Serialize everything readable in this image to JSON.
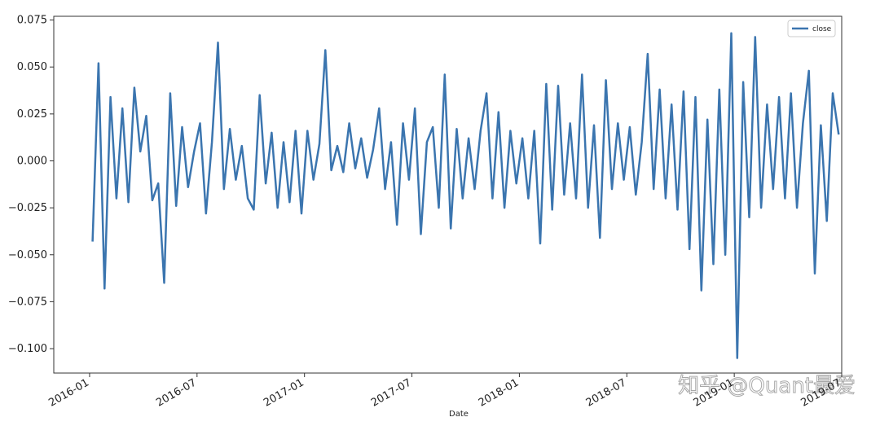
{
  "chart_data": {
    "type": "line",
    "xlabel": "Date",
    "watermark": "知乎 @Quant最爱",
    "legend": "upper right",
    "x": [
      "2016-01",
      "2016-01",
      "2016-01",
      "2016-02",
      "2016-02",
      "2016-02",
      "2016-03",
      "2016-03",
      "2016-03",
      "2016-04",
      "2016-04",
      "2016-04",
      "2016-05",
      "2016-05",
      "2016-05",
      "2016-06",
      "2016-06",
      "2016-06",
      "2016-07",
      "2016-07",
      "2016-07",
      "2016-08",
      "2016-08",
      "2016-08",
      "2016-09",
      "2016-09",
      "2016-09",
      "2016-10",
      "2016-10",
      "2016-10",
      "2016-11",
      "2016-11",
      "2016-11",
      "2016-12",
      "2016-12",
      "2016-12",
      "2017-01",
      "2017-01",
      "2017-01",
      "2017-02",
      "2017-02",
      "2017-02",
      "2017-03",
      "2017-03",
      "2017-03",
      "2017-04",
      "2017-04",
      "2017-04",
      "2017-05",
      "2017-05",
      "2017-05",
      "2017-06",
      "2017-06",
      "2017-06",
      "2017-07",
      "2017-07",
      "2017-07",
      "2017-08",
      "2017-08",
      "2017-08",
      "2017-09",
      "2017-09",
      "2017-09",
      "2017-10",
      "2017-10",
      "2017-10",
      "2017-11",
      "2017-11",
      "2017-11",
      "2017-12",
      "2017-12",
      "2017-12",
      "2018-01",
      "2018-01",
      "2018-01",
      "2018-02",
      "2018-02",
      "2018-02",
      "2018-03",
      "2018-03",
      "2018-03",
      "2018-04",
      "2018-04",
      "2018-04",
      "2018-05",
      "2018-05",
      "2018-05",
      "2018-06",
      "2018-06",
      "2018-06",
      "2018-07",
      "2018-07",
      "2018-07",
      "2018-08",
      "2018-08",
      "2018-08",
      "2018-09",
      "2018-09",
      "2018-09",
      "2018-10",
      "2018-10",
      "2018-10",
      "2018-11",
      "2018-11",
      "2018-11",
      "2018-12",
      "2018-12",
      "2018-12",
      "2019-01",
      "2019-01",
      "2019-01",
      "2019-02",
      "2019-02",
      "2019-02",
      "2019-03",
      "2019-03",
      "2019-03",
      "2019-04",
      "2019-04",
      "2019-04",
      "2019-05",
      "2019-05",
      "2019-05",
      "2019-06",
      "2019-06",
      "2019-06"
    ],
    "series": [
      {
        "name": "close",
        "color": "#3b75af",
        "values": [
          -0.043,
          0.052,
          -0.068,
          0.034,
          -0.02,
          0.028,
          -0.022,
          0.039,
          0.005,
          0.024,
          -0.021,
          -0.012,
          -0.065,
          0.036,
          -0.024,
          0.018,
          -0.014,
          0.005,
          0.02,
          -0.028,
          0.01,
          0.063,
          -0.015,
          0.017,
          -0.01,
          0.008,
          -0.02,
          -0.026,
          0.035,
          -0.012,
          0.015,
          -0.025,
          0.01,
          -0.022,
          0.016,
          -0.028,
          0.016,
          -0.01,
          0.009,
          0.059,
          -0.005,
          0.008,
          -0.006,
          0.02,
          -0.004,
          0.012,
          -0.009,
          0.006,
          0.028,
          -0.015,
          0.01,
          -0.034,
          0.02,
          -0.01,
          0.028,
          -0.039,
          0.01,
          0.018,
          -0.025,
          0.046,
          -0.036,
          0.017,
          -0.02,
          0.012,
          -0.015,
          0.016,
          0.036,
          -0.02,
          0.026,
          -0.025,
          0.016,
          -0.012,
          0.012,
          -0.02,
          0.016,
          -0.044,
          0.041,
          -0.026,
          0.04,
          -0.018,
          0.02,
          -0.02,
          0.046,
          -0.025,
          0.019,
          -0.041,
          0.043,
          -0.015,
          0.02,
          -0.01,
          0.018,
          -0.018,
          0.01,
          0.057,
          -0.015,
          0.038,
          -0.02,
          0.03,
          -0.026,
          0.037,
          -0.047,
          0.034,
          -0.069,
          0.022,
          -0.055,
          0.038,
          -0.05,
          0.068,
          -0.105,
          0.042,
          -0.03,
          0.066,
          -0.025,
          0.03,
          -0.015,
          0.034,
          -0.02,
          0.036,
          -0.025,
          0.02,
          0.048,
          -0.06,
          0.019,
          -0.032,
          0.036,
          0.014
        ]
      }
    ],
    "xlim": [
      "2015-11",
      "2019-07"
    ],
    "xticks": [
      "2016-01",
      "2016-07",
      "2017-01",
      "2017-07",
      "2018-01",
      "2018-07",
      "2019-01",
      "2019-07"
    ],
    "ylim": [
      -0.113,
      0.077
    ],
    "yticks": [
      {
        "value": -0.1,
        "label": "−0.100"
      },
      {
        "value": -0.075,
        "label": "−0.075"
      },
      {
        "value": -0.05,
        "label": "−0.050"
      },
      {
        "value": -0.025,
        "label": "−0.025"
      },
      {
        "value": 0,
        "label": "0.000"
      },
      {
        "value": 0.025,
        "label": "0.025"
      },
      {
        "value": 0.05,
        "label": "0.050"
      },
      {
        "value": 0.075,
        "label": "0.075"
      }
    ]
  }
}
